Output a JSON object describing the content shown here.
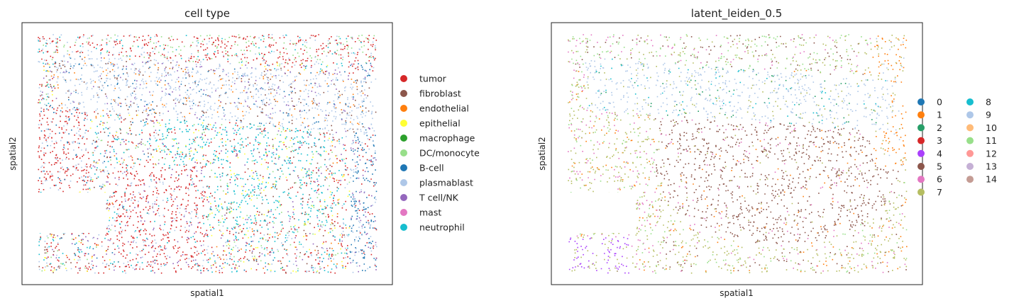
{
  "chart_data": [
    {
      "type": "scatter",
      "title": "cell type",
      "xlabel": "spatial1",
      "ylabel": "spatial2",
      "ticks": "none",
      "legend_position": "right",
      "series": [
        {
          "name": "tumor",
          "color": "#d62728"
        },
        {
          "name": "fibroblast",
          "color": "#8c564b"
        },
        {
          "name": "endothelial",
          "color": "#ff7f0e"
        },
        {
          "name": "epithelial",
          "color": "#ffff33"
        },
        {
          "name": "macrophage",
          "color": "#2ca02c"
        },
        {
          "name": "DC/monocyte",
          "color": "#98df8a"
        },
        {
          "name": "B-cell",
          "color": "#1f77b4"
        },
        {
          "name": "plasmablast",
          "color": "#aec7e8"
        },
        {
          "name": "T cell/NK",
          "color": "#9467bd"
        },
        {
          "name": "mast",
          "color": "#e377c2"
        },
        {
          "name": "neutrophil",
          "color": "#17becf"
        }
      ]
    },
    {
      "type": "scatter",
      "title": "latent_leiden_0.5",
      "xlabel": "spatial1",
      "ylabel": "spatial2",
      "ticks": "none",
      "legend_position": "right",
      "legend_columns": 2,
      "series": [
        {
          "name": "0",
          "color": "#1f77b4"
        },
        {
          "name": "1",
          "color": "#ff7f0e"
        },
        {
          "name": "2",
          "color": "#279e68"
        },
        {
          "name": "3",
          "color": "#d62728"
        },
        {
          "name": "4",
          "color": "#aa40fc"
        },
        {
          "name": "5",
          "color": "#8c564b"
        },
        {
          "name": "6",
          "color": "#e377c2"
        },
        {
          "name": "7",
          "color": "#b5bd61"
        },
        {
          "name": "8",
          "color": "#17becf"
        },
        {
          "name": "9",
          "color": "#aec7e8"
        },
        {
          "name": "10",
          "color": "#ffbb78"
        },
        {
          "name": "11",
          "color": "#98df8a"
        },
        {
          "name": "12",
          "color": "#ff9896"
        },
        {
          "name": "13",
          "color": "#c5b0d5"
        },
        {
          "name": "14",
          "color": "#c49c94"
        }
      ]
    }
  ]
}
